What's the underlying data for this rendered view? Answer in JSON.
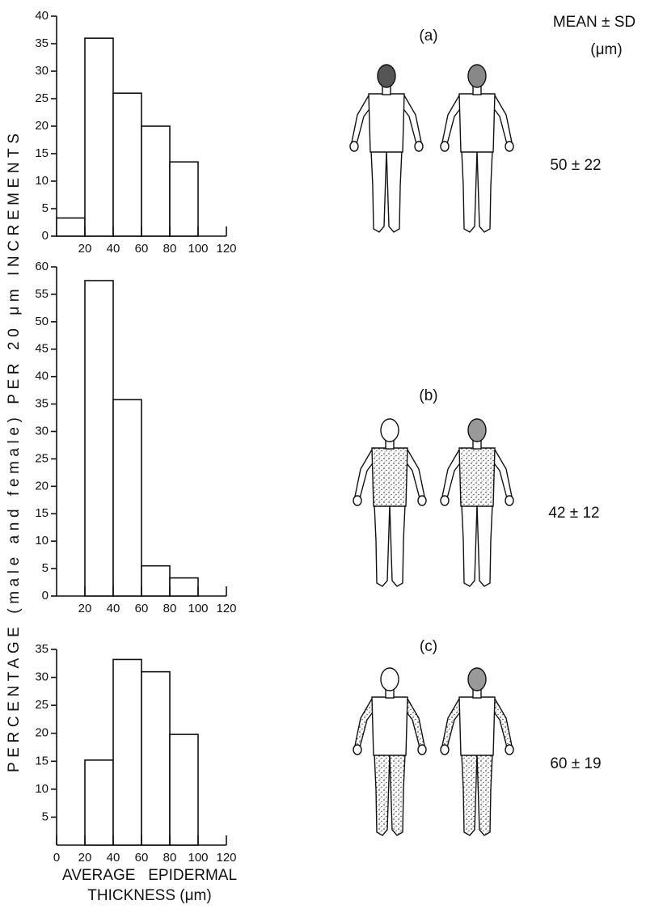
{
  "ylabel": "PERCENTAGE (male and female) PER 20 μm INCREMENTS",
  "xlabel": [
    "AVERAGE   EPIDERMAL",
    "THICKNESS (μm)"
  ],
  "header": {
    "title": "MEAN ± SD",
    "unit": "(μm)"
  },
  "chart_data": [
    {
      "type": "histogram",
      "panel": "(a)",
      "annotation": "50 ± 22",
      "bins": [
        0,
        20,
        40,
        60,
        80,
        100
      ],
      "values": [
        3.3,
        36,
        26,
        20,
        13.5
      ],
      "xlim": [
        0,
        120
      ],
      "ylim": [
        0,
        40
      ],
      "xticks": [
        20,
        40,
        60,
        80,
        100,
        120
      ],
      "yticks": [
        0,
        5,
        10,
        15,
        20,
        25,
        30,
        35,
        40
      ]
    },
    {
      "type": "histogram",
      "panel": "(b)",
      "annotation": "42 ± 12",
      "bins": [
        20,
        40,
        60,
        80,
        100
      ],
      "values": [
        57.5,
        35.8,
        5.5,
        3.3
      ],
      "xlim": [
        0,
        120
      ],
      "ylim": [
        0,
        60
      ],
      "xticks": [
        20,
        40,
        60,
        80,
        100,
        120
      ],
      "yticks": [
        0,
        5,
        10,
        15,
        20,
        25,
        30,
        35,
        40,
        45,
        50,
        55,
        60
      ]
    },
    {
      "type": "histogram",
      "panel": "(c)",
      "annotation": "60 ± 19",
      "bins": [
        20,
        40,
        60,
        80,
        100
      ],
      "values": [
        15.2,
        33.2,
        31,
        19.8
      ],
      "xlim": [
        0,
        120
      ],
      "ylim": [
        0,
        35
      ],
      "xticks": [
        0,
        20,
        40,
        60,
        80,
        100,
        120
      ],
      "yticks": [
        5,
        10,
        15,
        20,
        25,
        30,
        35
      ]
    }
  ]
}
